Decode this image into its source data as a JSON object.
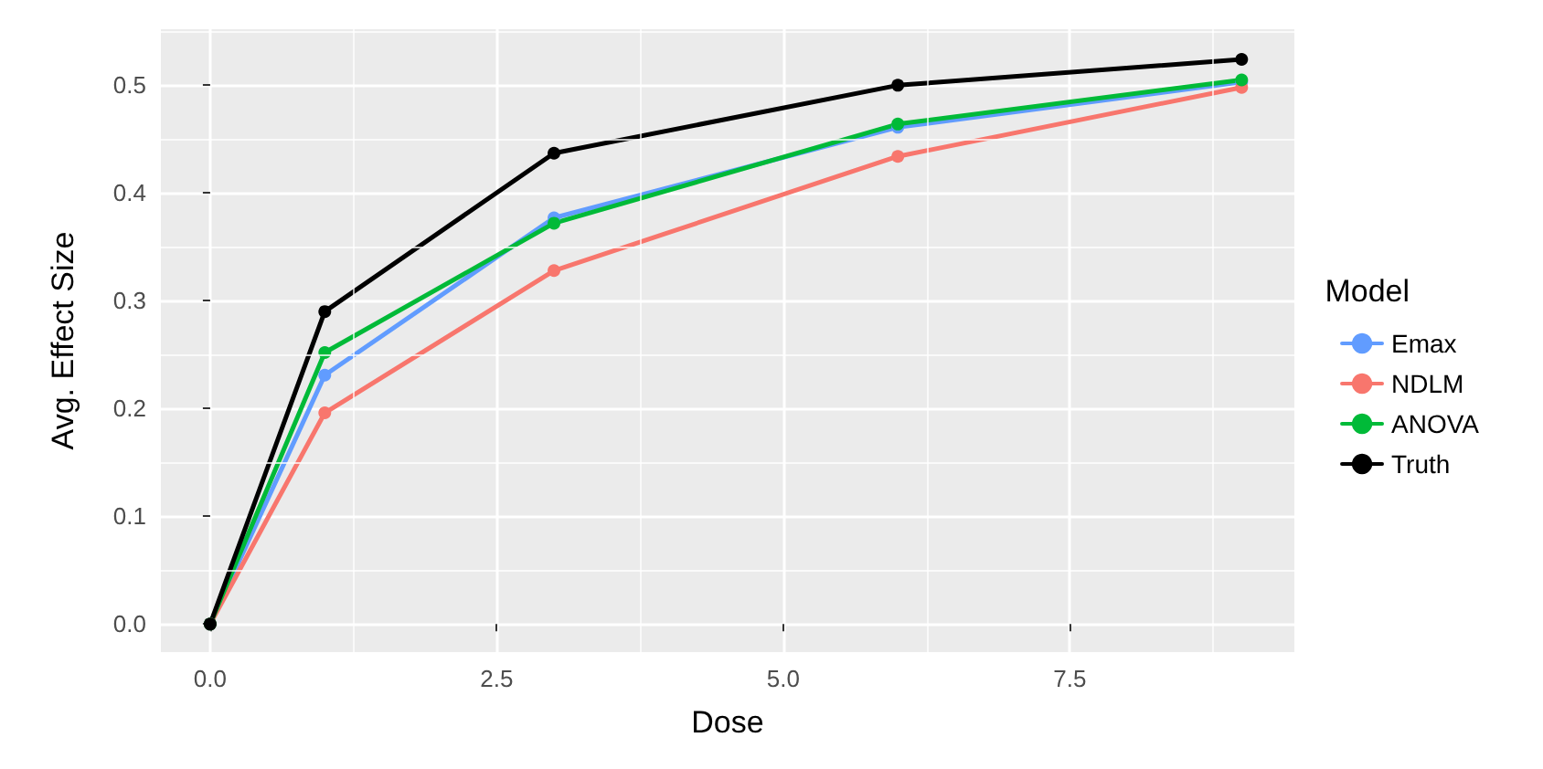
{
  "chart_data": {
    "type": "line",
    "xlabel": "Dose",
    "ylabel": "Avg. Effect Size",
    "legend_title": "Model",
    "legend": "right",
    "grid": true,
    "marker": "circle",
    "line_style": "solid",
    "x": [
      0,
      1,
      3,
      6,
      9
    ],
    "xlim": [
      -0.43,
      9.46
    ],
    "xticks": [
      {
        "value": 0,
        "label": "0.0"
      },
      {
        "value": 2.5,
        "label": "2.5"
      },
      {
        "value": 5,
        "label": "5.0"
      },
      {
        "value": 7.5,
        "label": "7.5"
      }
    ],
    "ylim": [
      -0.026,
      0.552
    ],
    "yticks": [
      {
        "value": 0,
        "label": "0.0"
      },
      {
        "value": 0.1,
        "label": "0.1"
      },
      {
        "value": 0.2,
        "label": "0.2"
      },
      {
        "value": 0.3,
        "label": "0.3"
      },
      {
        "value": 0.4,
        "label": "0.4"
      },
      {
        "value": 0.5,
        "label": "0.5"
      }
    ],
    "series": [
      {
        "name": "Emax",
        "color": "#619cff",
        "values": [
          0,
          0.231,
          0.377,
          0.461,
          0.503
        ]
      },
      {
        "name": "NDLM",
        "color": "#f8766d",
        "values": [
          0,
          0.196,
          0.328,
          0.434,
          0.498
        ]
      },
      {
        "name": "ANOVA",
        "color": "#00ba38",
        "values": [
          0,
          0.252,
          0.372,
          0.464,
          0.505
        ]
      },
      {
        "name": "Truth",
        "color": "#000000",
        "values": [
          0,
          0.29,
          0.437,
          0.5,
          0.524
        ]
      }
    ]
  }
}
